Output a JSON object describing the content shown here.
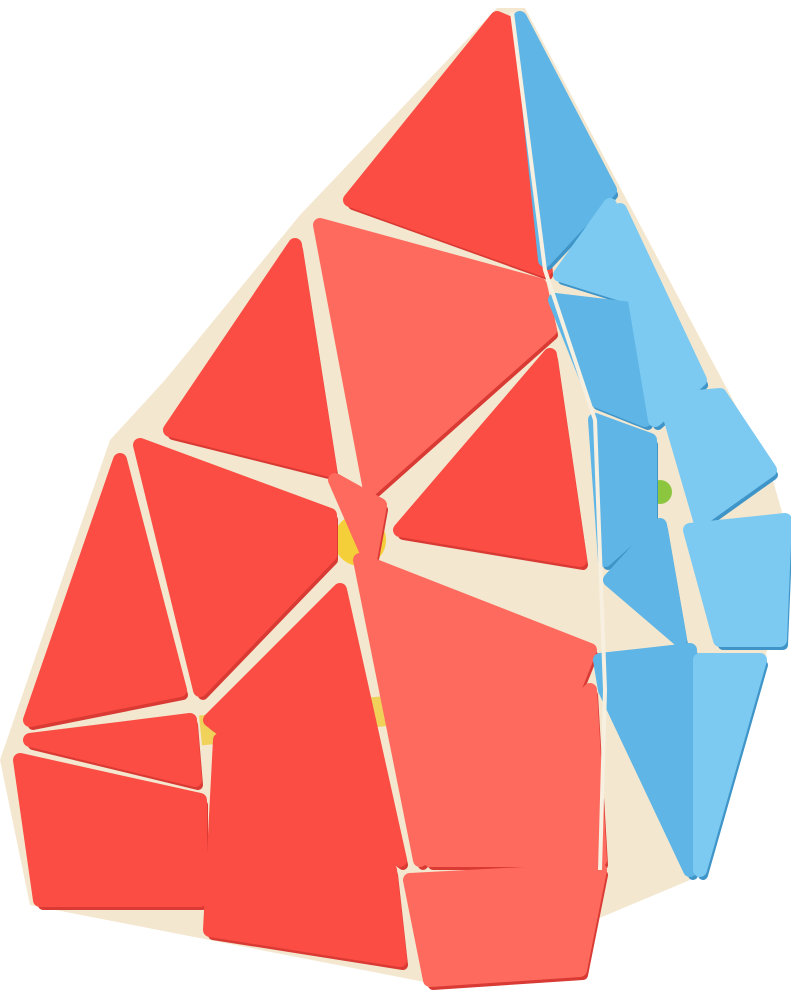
{
  "image": {
    "subject": "pyraminx-puzzle",
    "background_color": "#ffffff"
  },
  "colors": {
    "red_face": "#fb4d43",
    "red_face_highlight": "#ff6a5e",
    "red_edge_shadow": "#d93a34",
    "blue_face": "#5fb6e6",
    "blue_face_highlight": "#7ccaf1",
    "blue_edge_shadow": "#3f95c8",
    "yellow_core": "#f4cf3a",
    "green_core": "#8cc63f",
    "plastic_seam": "#f7efe0",
    "outline": "#c8322d"
  },
  "icons": {
    "puzzle": "pyraminx-icon"
  }
}
